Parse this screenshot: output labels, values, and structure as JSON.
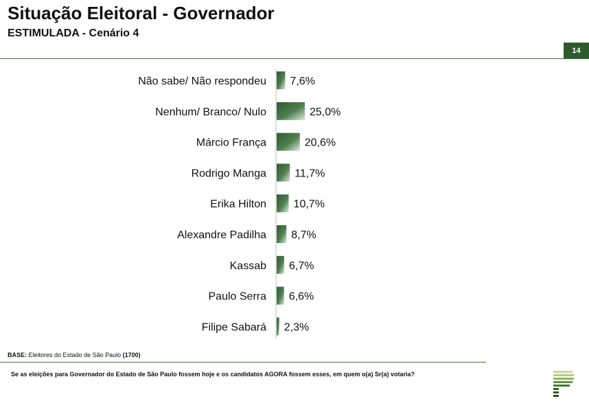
{
  "header": {
    "title": "Situação Eleitoral - Governador",
    "subtitle": "ESTIMULADA - Cenário 4",
    "page_number": "14"
  },
  "chart_data": {
    "type": "bar",
    "orientation": "horizontal",
    "categories": [
      "Não sabe/ Não respondeu",
      "Nenhum/ Branco/ Nulo",
      "Márcio França",
      "Rodrigo Manga",
      "Erika Hilton",
      "Alexandre Padilha",
      "Kassab",
      "Paulo Serra",
      "Filipe Sabará"
    ],
    "values": [
      7.6,
      25.0,
      20.6,
      11.7,
      10.7,
      8.7,
      6.7,
      6.6,
      2.3
    ],
    "value_labels": [
      "7,6%",
      "25,0%",
      "20,6%",
      "11,7%",
      "10,7%",
      "8,7%",
      "6,7%",
      "6,6%",
      "2,3%"
    ],
    "unit": "%",
    "bar_color": "#3e6b3e",
    "xlim": [
      0,
      25
    ]
  },
  "footer": {
    "base_label": "BASE:",
    "base_text": " Eleitores do Estado de São Paulo ",
    "base_count": "(1700)",
    "question": "Se as eleições para Governador do Estado de São Paulo fossem hoje e os candidatos AGORA fossem esses, em quem o(a) Sr(a) votaria?"
  },
  "colors": {
    "accent": "#2f5a2f",
    "rule": "#3e6b3e",
    "bar": "#3e6b3e"
  }
}
